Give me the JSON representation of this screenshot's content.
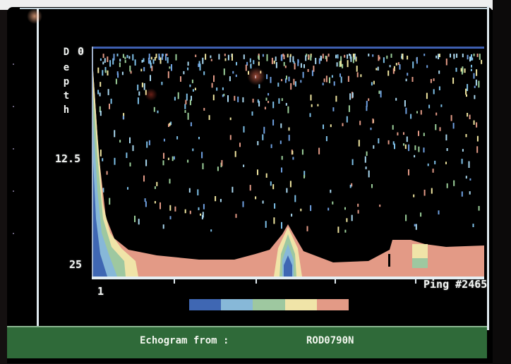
{
  "depth_axis": {
    "letters": [
      "D",
      "e",
      "p",
      "t",
      "h"
    ],
    "ticks": [
      "0",
      "12.5",
      "25"
    ]
  },
  "ping_axis": {
    "start_label": "1",
    "end_label": "Ping #2465"
  },
  "color_scale": [
    "#3f67b3",
    "#87b8d8",
    "#9ec8a0",
    "#f0e4a8",
    "#e39a86"
  ],
  "status_bar": {
    "label": "Echogram from :",
    "value": "ROD0790N"
  },
  "colors": {
    "screen": "#000000",
    "status": "#2f6a39",
    "text": "#f1f4f2"
  }
}
